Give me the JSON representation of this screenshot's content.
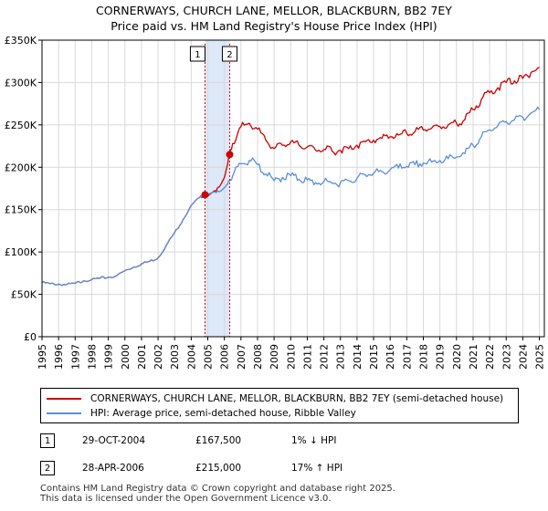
{
  "title": {
    "line1": "CORNERWAYS, CHURCH LANE, MELLOR, BLACKBURN, BB2 7EY",
    "line2": "Price paid vs. HM Land Registry's House Price Index (HPI)"
  },
  "chart_data": {
    "type": "line",
    "title": "CORNERWAYS, CHURCH LANE, MELLOR, BLACKBURN, BB2 7EY — Price paid vs. HM Land Registry's House Price Index (HPI)",
    "xlabel": "",
    "ylabel": "",
    "xlim": [
      1995,
      2025.3
    ],
    "ylim": [
      0,
      350000
    ],
    "y_ticks": [
      0,
      50000,
      100000,
      150000,
      200000,
      250000,
      300000,
      350000
    ],
    "y_tick_labels": [
      "£0",
      "£50K",
      "£100K",
      "£150K",
      "£200K",
      "£250K",
      "£300K",
      "£350K"
    ],
    "x_ticks": [
      1995,
      1996,
      1997,
      1998,
      1999,
      2000,
      2001,
      2002,
      2003,
      2004,
      2005,
      2006,
      2007,
      2008,
      2009,
      2010,
      2011,
      2012,
      2013,
      2014,
      2015,
      2016,
      2017,
      2018,
      2019,
      2020,
      2021,
      2022,
      2023,
      2024,
      2025
    ],
    "x_tick_labels": [
      "1995",
      "1996",
      "1997",
      "1998",
      "1999",
      "2000",
      "2001",
      "2002",
      "2003",
      "2004",
      "2005",
      "2006",
      "2007",
      "2008",
      "2009",
      "2010",
      "2011",
      "2012",
      "2013",
      "2014",
      "2015",
      "2016",
      "2017",
      "2018",
      "2019",
      "2020",
      "2021",
      "2022",
      "2023",
      "2024",
      "2025"
    ],
    "grid": true,
    "legend_position": "below",
    "series": [
      {
        "name": "CORNERWAYS, CHURCH LANE, MELLOR, BLACKBURN, BB2 7EY (semi-detached house)",
        "color": "#cc0000",
        "x": [
          1995.0,
          1995.5,
          1996.0,
          1996.5,
          1997.0,
          1997.5,
          1998.0,
          1998.5,
          1999.0,
          1999.5,
          2000.0,
          2000.5,
          2001.0,
          2001.5,
          2002.0,
          2002.5,
          2003.0,
          2003.5,
          2004.0,
          2004.5,
          2004.83,
          2005.0,
          2005.5,
          2006.0,
          2006.32,
          2006.5,
          2007.0,
          2007.5,
          2008.0,
          2008.5,
          2009.0,
          2009.5,
          2010.0,
          2010.5,
          2011.0,
          2011.5,
          2012.0,
          2012.5,
          2013.0,
          2013.5,
          2014.0,
          2014.5,
          2015.0,
          2015.5,
          2016.0,
          2016.5,
          2017.0,
          2017.5,
          2018.0,
          2018.5,
          2019.0,
          2019.5,
          2020.0,
          2020.5,
          2021.0,
          2021.5,
          2022.0,
          2022.5,
          2023.0,
          2023.5,
          2024.0,
          2024.5,
          2025.0
        ],
        "values": [
          64000,
          62500,
          62000,
          61500,
          63000,
          66000,
          67500,
          69000,
          70000,
          72000,
          78000,
          82000,
          86000,
          89000,
          93000,
          108000,
          123000,
          138000,
          155000,
          164000,
          167500,
          166000,
          172000,
          188000,
          215000,
          228000,
          248000,
          252000,
          245000,
          232000,
          222000,
          226000,
          230000,
          226000,
          224000,
          220000,
          221000,
          219000,
          220000,
          222000,
          226000,
          230000,
          232000,
          234000,
          236000,
          238000,
          240000,
          242000,
          244000,
          246000,
          248000,
          250000,
          252000,
          256000,
          268000,
          280000,
          288000,
          294000,
          300000,
          302000,
          305000,
          312000,
          318000
        ]
      },
      {
        "name": "HPI: Average price, semi-detached house, Ribble Valley",
        "color": "#5b8fd6",
        "x": [
          1995.0,
          1995.5,
          1996.0,
          1996.5,
          1997.0,
          1997.5,
          1998.0,
          1998.5,
          1999.0,
          1999.5,
          2000.0,
          2000.5,
          2001.0,
          2001.5,
          2002.0,
          2002.5,
          2003.0,
          2003.5,
          2004.0,
          2004.5,
          2004.83,
          2005.0,
          2005.5,
          2006.0,
          2006.32,
          2006.5,
          2007.0,
          2007.5,
          2008.0,
          2008.5,
          2009.0,
          2009.5,
          2010.0,
          2010.5,
          2011.0,
          2011.5,
          2012.0,
          2012.5,
          2013.0,
          2013.5,
          2014.0,
          2014.5,
          2015.0,
          2015.5,
          2016.0,
          2016.5,
          2017.0,
          2017.5,
          2018.0,
          2018.5,
          2019.0,
          2019.5,
          2020.0,
          2020.5,
          2021.0,
          2021.5,
          2022.0,
          2022.5,
          2023.0,
          2023.5,
          2024.0,
          2024.5,
          2025.0
        ],
        "values": [
          64000,
          62500,
          62000,
          61500,
          63000,
          66000,
          67500,
          69000,
          70000,
          72000,
          78000,
          82000,
          86000,
          89000,
          93000,
          108000,
          123000,
          138000,
          155000,
          164000,
          169000,
          168000,
          170000,
          176000,
          184000,
          190000,
          204000,
          208000,
          203000,
          192000,
          184000,
          188000,
          190000,
          186000,
          185000,
          182000,
          183000,
          181000,
          182000,
          184000,
          187000,
          191000,
          193000,
          195000,
          197000,
          199000,
          201000,
          203000,
          205000,
          206000,
          208000,
          210000,
          212000,
          216000,
          226000,
          236000,
          244000,
          249000,
          254000,
          256000,
          259000,
          264000,
          268000
        ]
      }
    ],
    "transactions": [
      {
        "id": "1",
        "x": 2004.83,
        "value": 167500
      },
      {
        "id": "2",
        "x": 2006.32,
        "value": 215000
      }
    ]
  },
  "legend": {
    "property_label": "CORNERWAYS, CHURCH LANE, MELLOR, BLACKBURN, BB2 7EY (semi-detached house)",
    "hpi_label": "HPI: Average price, semi-detached house, Ribble Valley"
  },
  "transactions_table": [
    {
      "id": "1",
      "date": "29-OCT-2004",
      "price": "£167,500",
      "hpi": "1% ↓ HPI"
    },
    {
      "id": "2",
      "date": "28-APR-2006",
      "price": "£215,000",
      "hpi": "17% ↑ HPI"
    }
  ],
  "footer": {
    "line1": "Contains HM Land Registry data © Crown copyright and database right 2025.",
    "line2": "This data is licensed under the Open Government Licence v3.0."
  },
  "colors": {
    "property": "#cc0000",
    "hpi": "#5b8fd6",
    "shade": "#dde8f8",
    "grid": "#d9d9d9"
  }
}
